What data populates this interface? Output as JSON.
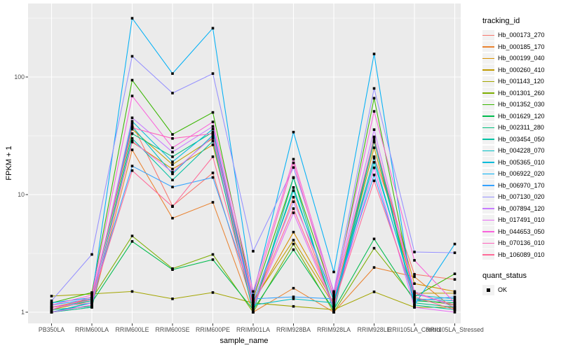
{
  "chart_data": {
    "type": "line",
    "xlabel": "sample_name",
    "ylabel": "FPKM + 1",
    "y_scale": "log10",
    "yticks": [
      1,
      10,
      100
    ],
    "ytick_labels": [
      "1",
      "10",
      "100"
    ],
    "ylim": [
      1,
      420
    ],
    "grid": "on",
    "legend_position": "right",
    "point_shape": "filled-square",
    "point_color": "#000000",
    "panel_background": "#EBEBEB",
    "grid_color": "#FFFFFF",
    "tick_label_color": "#4D4D4D",
    "categories": [
      "PB350LA",
      "RRIM600LA",
      "RRIM600LE",
      "RRIM600SE",
      "RRIM600PE",
      "RRIM901LA",
      "RRIM928BA",
      "RRIM928LA",
      "RRIM928LE",
      "RRII105LA_Control",
      "RRII105LA_Stressed"
    ],
    "series": [
      {
        "name": "Hb_000173_270",
        "color": "#F8766D",
        "values": [
          1.1,
          1.2,
          40,
          8,
          15.3,
          1.1,
          9.5,
          1.1,
          21,
          2.1,
          1.9
        ]
      },
      {
        "name": "Hb_000185_170",
        "color": "#EA8331",
        "values": [
          1.0,
          1.1,
          24,
          6.3,
          8.6,
          1.0,
          1.6,
          1.0,
          2.4,
          2.0,
          1.05
        ]
      },
      {
        "name": "Hb_000199_040",
        "color": "#D89000",
        "values": [
          1.0,
          1.15,
          28,
          16.5,
          26.5,
          1.2,
          4.8,
          1.2,
          28,
          1.75,
          1.5
        ]
      },
      {
        "name": "Hb_000260_410",
        "color": "#C09B00",
        "values": [
          1.05,
          1.25,
          36,
          18,
          30,
          1.25,
          4.1,
          1.15,
          25,
          1.45,
          1.45
        ]
      },
      {
        "name": "Hb_001143_120",
        "color": "#A3A500",
        "values": [
          1.37,
          1.43,
          1.5,
          1.3,
          1.47,
          1.2,
          1.12,
          1.05,
          1.49,
          1.1,
          1.1
        ]
      },
      {
        "name": "Hb_001301_260",
        "color": "#7CAE00",
        "values": [
          1.1,
          1.3,
          4.45,
          2.35,
          3.1,
          1.0,
          3.8,
          1.0,
          3.5,
          1.3,
          1.15
        ]
      },
      {
        "name": "Hb_001352_030",
        "color": "#39B600",
        "values": [
          1.2,
          1.47,
          94,
          32.5,
          50,
          1.3,
          14,
          1.35,
          66,
          1.35,
          2.12
        ]
      },
      {
        "name": "Hb_001629_120",
        "color": "#00BB4E",
        "values": [
          1.0,
          1.21,
          4.0,
          2.3,
          2.8,
          1.05,
          3.4,
          1.05,
          4.2,
          1.25,
          1.2
        ]
      },
      {
        "name": "Hb_002311_280",
        "color": "#00BF7D",
        "values": [
          1.05,
          1.12,
          33,
          21,
          34,
          1.1,
          11.5,
          1.1,
          31,
          1.2,
          1.1
        ]
      },
      {
        "name": "Hb_003454_050",
        "color": "#00C1A3",
        "values": [
          1.0,
          1.1,
          30,
          13.3,
          28.5,
          1.0,
          13.9,
          1.0,
          29,
          1.15,
          1.05
        ]
      },
      {
        "name": "Hb_004228_070",
        "color": "#00BFC4",
        "values": [
          1.1,
          1.25,
          38,
          15,
          32,
          1.15,
          1.3,
          1.2,
          18.8,
          1.4,
          1.3
        ]
      },
      {
        "name": "Hb_005365_010",
        "color": "#00BBDA",
        "values": [
          1.0,
          1.2,
          42,
          19,
          36,
          1.2,
          10.8,
          1.25,
          20.4,
          1.3,
          1.25
        ]
      },
      {
        "name": "Hb_006922_020",
        "color": "#00B0F6",
        "values": [
          1.2,
          1.33,
          316,
          107,
          260,
          1.4,
          34,
          2.2,
          157,
          1.15,
          3.8
        ]
      },
      {
        "name": "Hb_006970_170",
        "color": "#35A2FF",
        "values": [
          1.15,
          1.3,
          17.5,
          11.6,
          14,
          1.3,
          1.35,
          1.3,
          14.7,
          1.25,
          1.35
        ]
      },
      {
        "name": "Hb_007130_020",
        "color": "#9590FF",
        "values": [
          1.25,
          3.1,
          150,
          73,
          107,
          3.3,
          17,
          1.5,
          80,
          3.25,
          3.2
        ]
      },
      {
        "name": "Hb_007894_120",
        "color": "#C77CFF",
        "values": [
          1.1,
          1.2,
          45,
          23,
          38,
          1.25,
          8.7,
          1.4,
          35.7,
          1.5,
          1.1
        ]
      },
      {
        "name": "Hb_017491_010",
        "color": "#E76BF3",
        "values": [
          1.0,
          1.15,
          28.5,
          15.5,
          31,
          1.1,
          7.0,
          1.1,
          16.9,
          1.1,
          1.0
        ]
      },
      {
        "name": "Hb_044653_050",
        "color": "#FA62DB",
        "values": [
          1.15,
          1.4,
          69,
          25,
          41.5,
          1.5,
          20,
          1.45,
          51,
          2.76,
          1.2
        ]
      },
      {
        "name": "Hb_070136_010",
        "color": "#FF62BC",
        "values": [
          1.05,
          1.35,
          37,
          30,
          33,
          1.35,
          18.6,
          1.3,
          30.5,
          1.45,
          1.15
        ]
      },
      {
        "name": "Hb_106089_010",
        "color": "#FF6A98",
        "values": [
          1.1,
          1.28,
          16,
          7.9,
          21,
          1.15,
          7.6,
          1.15,
          13.1,
          1.35,
          1.05
        ]
      }
    ]
  },
  "legend": {
    "tracking_title": "tracking_id",
    "quant_title": "quant_status",
    "quant_items": [
      {
        "label": "OK"
      }
    ]
  }
}
